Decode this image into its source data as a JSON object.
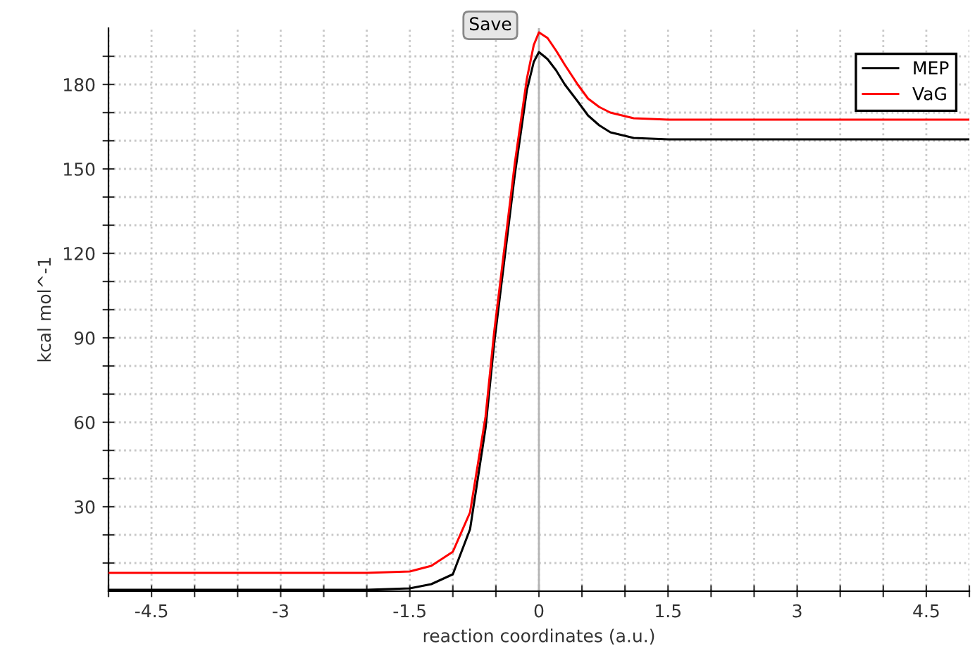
{
  "chart_data": {
    "type": "line",
    "xlabel": "reaction coordinates (a.u.)",
    "ylabel": "kcal mol^-1",
    "x": [
      -5,
      -2,
      -1.5,
      -1.25,
      -1,
      -0.8,
      -0.62,
      -0.52,
      -0.4,
      -0.28,
      -0.14,
      -0.06,
      0,
      0.1,
      0.2,
      0.3,
      0.45,
      0.57,
      0.7,
      0.83,
      1.1,
      1.5,
      3,
      5
    ],
    "series": [
      {
        "name": "MEP",
        "color": "#000000",
        "values": [
          0.5,
          0.5,
          1,
          2.5,
          6,
          22,
          58,
          88,
          118,
          148,
          178,
          188,
          191.5,
          189,
          185,
          180,
          174,
          169,
          165.5,
          163,
          161,
          160.5,
          160.5,
          160.5
        ]
      },
      {
        "name": "VaG",
        "color": "#ff0000",
        "values": [
          6.5,
          6.5,
          7,
          9,
          14,
          28,
          62,
          92,
          122,
          152,
          182,
          194,
          198.5,
          196.5,
          192,
          187,
          180,
          175,
          172,
          170,
          168,
          167.5,
          167.5,
          167.5
        ]
      }
    ],
    "xlim": [
      -5,
      5
    ],
    "ylim": [
      0,
      200
    ],
    "xticks": [
      {
        "value": -5,
        "label": null
      },
      -4.5,
      {
        "value": -4,
        "label": null
      },
      {
        "value": -3.5,
        "label": null
      },
      -3,
      {
        "value": -2.5,
        "label": null
      },
      {
        "value": -2,
        "label": null
      },
      -1.5,
      {
        "value": -1,
        "label": null
      },
      {
        "value": -0.5,
        "label": null
      },
      0,
      {
        "value": 0.5,
        "label": null
      },
      {
        "value": 1,
        "label": null
      },
      1.5,
      {
        "value": 2,
        "label": null
      },
      {
        "value": 2.5,
        "label": null
      },
      3,
      {
        "value": 3.5,
        "label": null
      },
      {
        "value": 4,
        "label": null
      },
      4.5,
      {
        "value": 5,
        "label": null
      }
    ],
    "yticks": [
      {
        "value": 10,
        "label": null
      },
      {
        "value": 20,
        "label": null
      },
      30,
      {
        "value": 40,
        "label": null
      },
      {
        "value": 50,
        "label": null
      },
      60,
      {
        "value": 70,
        "label": null
      },
      {
        "value": 80,
        "label": null
      },
      90,
      {
        "value": 100,
        "label": null
      },
      {
        "value": 110,
        "label": null
      },
      120,
      {
        "value": 130,
        "label": null
      },
      {
        "value": 140,
        "label": null
      },
      150,
      {
        "value": 160,
        "label": null
      },
      {
        "value": 170,
        "label": null
      },
      180,
      {
        "value": 190,
        "label": null
      }
    ],
    "ref_lines": [
      {
        "axis": "x",
        "value": 0,
        "color": "#b4b4b4"
      }
    ],
    "annotations": [
      "Save"
    ],
    "grid": true,
    "legend": "top right",
    "marker": "none",
    "line_style": "solid"
  }
}
